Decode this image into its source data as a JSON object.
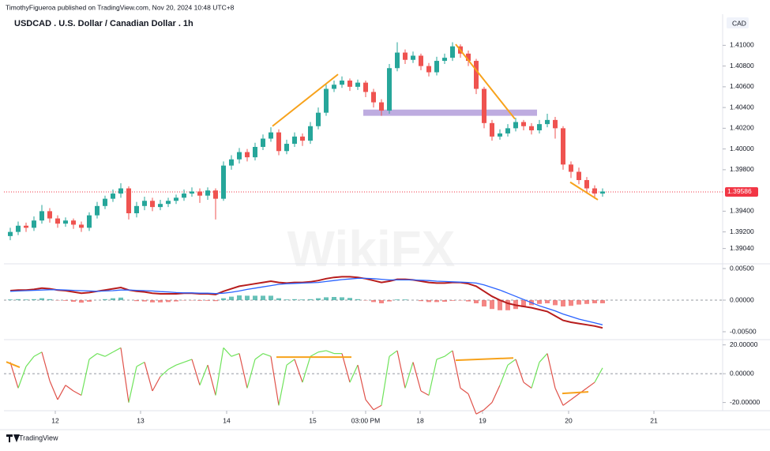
{
  "header": {
    "publisher": "TimothyFigueroa published on TradingView.com, Nov 20, 2024 10:48 UTC+8",
    "title": "USDCAD . U.S. Dollar / Canadian Dollar . 1h"
  },
  "watermark": "WikiFX",
  "brand": "TradingView",
  "chart_data": [
    {
      "type": "candlestick",
      "currency": "CAD",
      "up_color": "#26a69a",
      "down_color": "#ef5350",
      "xlim": [
        -0.8,
        90.2
      ],
      "xticks": [
        {
          "value": 5.7,
          "label": "12"
        },
        {
          "value": 16.5,
          "label": "13"
        },
        {
          "value": 27.4,
          "label": "14"
        },
        {
          "value": 38.3,
          "label": "15"
        },
        {
          "value": 45,
          "label": "03:00 PM"
        },
        {
          "value": 51.9,
          "label": "18"
        },
        {
          "value": 59.8,
          "label": "19"
        },
        {
          "value": 70.7,
          "label": "20"
        },
        {
          "value": 81.5,
          "label": "21"
        }
      ],
      "ylim": [
        1.389,
        1.413
      ],
      "yticks": [
        {
          "value": 1.41,
          "label": "1.41000"
        },
        {
          "value": 1.408,
          "label": "1.40800"
        },
        {
          "value": 1.406,
          "label": "1.40600"
        },
        {
          "value": 1.404,
          "label": "1.40400"
        },
        {
          "value": 1.402,
          "label": "1.40200"
        },
        {
          "value": 1.4,
          "label": "1.40000"
        },
        {
          "value": 1.398,
          "label": "1.39800"
        },
        {
          "value": 1.394,
          "label": "1.39400"
        },
        {
          "value": 1.392,
          "label": "1.39200"
        },
        {
          "value": 1.3904,
          "label": "1.39040"
        }
      ],
      "last_price": 1.39586,
      "last_price_color": "#f23645",
      "trendline_color": "#f7a21b",
      "trendlines": [
        {
          "from": [
            33.2,
            1.4022
          ],
          "to": [
            41.5,
            1.4072
          ]
        },
        {
          "from": [
            56.4,
            1.4101
          ],
          "to": [
            63.9,
            1.4029
          ]
        },
        {
          "from": [
            70.9,
            1.3968
          ],
          "to": [
            74.4,
            1.3951
          ]
        }
      ],
      "zone": {
        "x": [
          44.7,
          66.7
        ],
        "y": [
          1.4032,
          1.4038
        ],
        "color": "#b39ddb"
      },
      "candles": [
        [
          1.3916,
          1.3924,
          1.3912,
          1.392
        ],
        [
          1.392,
          1.393,
          1.3917,
          1.3926
        ],
        [
          1.3926,
          1.3929,
          1.392,
          1.3924
        ],
        [
          1.3924,
          1.3935,
          1.3921,
          1.3931
        ],
        [
          1.3931,
          1.3946,
          1.3928,
          1.394
        ],
        [
          1.394,
          1.3943,
          1.3929,
          1.3933
        ],
        [
          1.3933,
          1.3936,
          1.3924,
          1.3928
        ],
        [
          1.3928,
          1.3934,
          1.3925,
          1.3931
        ],
        [
          1.3931,
          1.3933,
          1.3923,
          1.3927
        ],
        [
          1.3927,
          1.393,
          1.392,
          1.3924
        ],
        [
          1.3924,
          1.3939,
          1.3921,
          1.3936
        ],
        [
          1.3936,
          1.3949,
          1.3933,
          1.3945
        ],
        [
          1.3945,
          1.3955,
          1.3942,
          1.3952
        ],
        [
          1.3952,
          1.3961,
          1.3949,
          1.3957
        ],
        [
          1.3957,
          1.3967,
          1.3953,
          1.3962
        ],
        [
          1.3962,
          1.3964,
          1.3932,
          1.3938
        ],
        [
          1.3938,
          1.3949,
          1.3934,
          1.3945
        ],
        [
          1.3945,
          1.3954,
          1.3941,
          1.395
        ],
        [
          1.395,
          1.3953,
          1.394,
          1.3944
        ],
        [
          1.3944,
          1.3951,
          1.3941,
          1.3947
        ],
        [
          1.3947,
          1.3953,
          1.3944,
          1.395
        ],
        [
          1.395,
          1.3956,
          1.3947,
          1.3953
        ],
        [
          1.3953,
          1.3961,
          1.395,
          1.3957
        ],
        [
          1.3957,
          1.3963,
          1.3954,
          1.3959
        ],
        [
          1.3959,
          1.3962,
          1.3948,
          1.3955
        ],
        [
          1.3955,
          1.3963,
          1.3951,
          1.396
        ],
        [
          1.396,
          1.3962,
          1.3932,
          1.3952
        ],
        [
          1.3952,
          1.3988,
          1.395,
          1.3984
        ],
        [
          1.3984,
          1.3994,
          1.398,
          1.399
        ],
        [
          1.399,
          1.4001,
          1.3986,
          1.3997
        ],
        [
          1.3997,
          1.4,
          1.3988,
          1.3992
        ],
        [
          1.3992,
          1.4006,
          1.3989,
          1.4002
        ],
        [
          1.4002,
          1.4014,
          1.3999,
          1.401
        ],
        [
          1.401,
          1.4021,
          1.4007,
          1.4016
        ],
        [
          1.4016,
          1.4019,
          1.3994,
          1.3998
        ],
        [
          1.3998,
          1.4009,
          1.3995,
          1.4005
        ],
        [
          1.4005,
          1.4016,
          1.4002,
          1.4012
        ],
        [
          1.4012,
          1.4015,
          1.4003,
          1.4008
        ],
        [
          1.4008,
          1.4026,
          1.4005,
          1.4022
        ],
        [
          1.4022,
          1.404,
          1.4019,
          1.4035
        ],
        [
          1.4035,
          1.4062,
          1.4032,
          1.4058
        ],
        [
          1.4058,
          1.4066,
          1.4055,
          1.4062
        ],
        [
          1.4062,
          1.407,
          1.4059,
          1.4066
        ],
        [
          1.4066,
          1.4068,
          1.4056,
          1.406
        ],
        [
          1.406,
          1.4067,
          1.4057,
          1.4064
        ],
        [
          1.4064,
          1.4066,
          1.405,
          1.4055
        ],
        [
          1.4055,
          1.4058,
          1.404,
          1.4045
        ],
        [
          1.4045,
          1.4048,
          1.4032,
          1.4037
        ],
        [
          1.4037,
          1.4082,
          1.4034,
          1.4078
        ],
        [
          1.4078,
          1.4103,
          1.4075,
          1.4093
        ],
        [
          1.4093,
          1.4096,
          1.4082,
          1.4086
        ],
        [
          1.4086,
          1.4094,
          1.4083,
          1.409
        ],
        [
          1.409,
          1.4092,
          1.4076,
          1.408
        ],
        [
          1.408,
          1.4083,
          1.407,
          1.4074
        ],
        [
          1.4074,
          1.4089,
          1.4071,
          1.4085
        ],
        [
          1.4085,
          1.4092,
          1.4082,
          1.4088
        ],
        [
          1.4088,
          1.4103,
          1.4085,
          1.4099
        ],
        [
          1.4099,
          1.4101,
          1.4088,
          1.4092
        ],
        [
          1.4092,
          1.4095,
          1.408,
          1.4085
        ],
        [
          1.4085,
          1.4087,
          1.4053,
          1.4058
        ],
        [
          1.4058,
          1.406,
          1.402,
          1.4025
        ],
        [
          1.4025,
          1.4028,
          1.4008,
          1.4012
        ],
        [
          1.4012,
          1.4019,
          1.4009,
          1.4015
        ],
        [
          1.4015,
          1.4024,
          1.4012,
          1.402
        ],
        [
          1.402,
          1.403,
          1.4017,
          1.4026
        ],
        [
          1.4026,
          1.4028,
          1.4018,
          1.4022
        ],
        [
          1.4022,
          1.4025,
          1.4014,
          1.4018
        ],
        [
          1.4018,
          1.4028,
          1.4015,
          1.4024
        ],
        [
          1.4024,
          1.4034,
          1.4021,
          1.4028
        ],
        [
          1.4028,
          1.4031,
          1.401,
          1.402
        ],
        [
          1.402,
          1.4022,
          1.398,
          1.3985
        ],
        [
          1.3985,
          1.3988,
          1.3972,
          1.3978
        ],
        [
          1.3978,
          1.3982,
          1.3966,
          1.397
        ],
        [
          1.397,
          1.3973,
          1.3958,
          1.3962
        ],
        [
          1.3962,
          1.3965,
          1.3952,
          1.3957
        ],
        [
          1.3957,
          1.3962,
          1.3954,
          1.3959
        ]
      ]
    },
    {
      "type": "macd",
      "ylim": [
        -0.006,
        0.005625
      ],
      "yticks": [
        {
          "value": 0.005,
          "label": "0.00500"
        },
        {
          "value": 0,
          "label": "0.00000"
        },
        {
          "value": -0.005,
          "label": "-0.00500"
        }
      ],
      "hist_colors": {
        "positive": "#26a69a",
        "negative": "#ef5350"
      },
      "series": [
        {
          "color": "#b71c1c",
          "values": [
            0.0015,
            0.0016,
            0.0016,
            0.0017,
            0.0019,
            0.0018,
            0.0016,
            0.0015,
            0.0013,
            0.0011,
            0.0012,
            0.0014,
            0.0016,
            0.0018,
            0.002,
            0.0016,
            0.0014,
            0.0013,
            0.0011,
            0.001,
            0.001,
            0.001,
            0.0011,
            0.0011,
            0.001,
            0.001,
            0.0009,
            0.0014,
            0.0018,
            0.0022,
            0.0024,
            0.0026,
            0.0028,
            0.003,
            0.0028,
            0.0027,
            0.0028,
            0.0028,
            0.0029,
            0.0031,
            0.0034,
            0.0036,
            0.0037,
            0.0037,
            0.0036,
            0.0034,
            0.0031,
            0.0028,
            0.003,
            0.0033,
            0.0033,
            0.0032,
            0.003,
            0.0028,
            0.0027,
            0.0027,
            0.0028,
            0.0028,
            0.0026,
            0.0022,
            0.0014,
            0.0006,
            0,
            -0.0005,
            -0.0008,
            -0.001,
            -0.0012,
            -0.0015,
            -0.0018,
            -0.0025,
            -0.0032,
            -0.0035,
            -0.0037,
            -0.0039,
            -0.0041,
            -0.0044
          ]
        },
        {
          "color": "#2962ff",
          "values": [
            0.0014,
            0.00145,
            0.0015,
            0.00155,
            0.0016,
            0.00165,
            0.00165,
            0.0016,
            0.00155,
            0.0015,
            0.00145,
            0.0014,
            0.00145,
            0.0015,
            0.0016,
            0.0016,
            0.00155,
            0.0015,
            0.00145,
            0.00135,
            0.0013,
            0.0012,
            0.00115,
            0.00115,
            0.0011,
            0.0011,
            0.00105,
            0.0011,
            0.00125,
            0.00145,
            0.0017,
            0.0019,
            0.0021,
            0.0023,
            0.0025,
            0.0026,
            0.00265,
            0.0027,
            0.00275,
            0.0028,
            0.00295,
            0.0031,
            0.00325,
            0.00335,
            0.00345,
            0.00345,
            0.0034,
            0.0033,
            0.0032,
            0.0032,
            0.0032,
            0.0032,
            0.00315,
            0.0031,
            0.003,
            0.00295,
            0.0029,
            0.00285,
            0.0028,
            0.0027,
            0.0024,
            0.002,
            0.0016,
            0.0011,
            0.0006,
            0.0001,
            -0.0004,
            -0.0009,
            -0.0013,
            -0.0017,
            -0.0022,
            -0.0026,
            -0.003,
            -0.0033,
            -0.0036,
            -0.0039
          ]
        }
      ],
      "histogram": [
        0.0001,
        0.00015,
        0.0001,
        0.00015,
        0.0003,
        0.00015,
        -5e-05,
        -0.0001,
        -0.00025,
        -0.0004,
        -0.00025,
        0,
        0.00015,
        0.0003,
        0.0004,
        0,
        -0.00015,
        -0.0002,
        -0.00035,
        -0.00035,
        -0.0003,
        -0.0002,
        -5e-05,
        -5e-05,
        -0.0001,
        -0.0001,
        -0.00015,
        0.0003,
        0.00055,
        0.00075,
        0.0007,
        0.0007,
        0.0007,
        0.0007,
        0.0003,
        0.0001,
        0.00015,
        0.0001,
        0.00015,
        0.0003,
        0.00045,
        0.0005,
        0.00045,
        0.00035,
        0.00015,
        -5e-05,
        -0.0003,
        -0.0005,
        -0.0002,
        0.0001,
        0.0001,
        0,
        -0.00015,
        -0.0003,
        -0.0003,
        -0.00025,
        -0.0001,
        -5e-05,
        -0.0002,
        -0.0005,
        -0.001,
        -0.0014,
        -0.0016,
        -0.0016,
        -0.0014,
        -0.0011,
        -0.0008,
        -0.0006,
        -0.0005,
        -0.0008,
        -0.001,
        -0.0009,
        -0.0007,
        -0.0006,
        -0.0005,
        -0.0005
      ]
    },
    {
      "type": "oscillator",
      "ylim": [
        -25.7,
        22
      ],
      "yticks": [
        {
          "value": 20,
          "label": "20.00000"
        },
        {
          "value": 0,
          "label": "0.00000"
        },
        {
          "value": -20,
          "label": "-20.00000"
        }
      ],
      "colors": {
        "positive": "#6fe35b",
        "negative": "#e0524a"
      },
      "trendline_color": "#f7a21b",
      "trendlines": [
        {
          "from": [
            -0.5,
            8.2
          ],
          "to": [
            1.2,
            4.4
          ]
        },
        {
          "from": [
            33.7,
            11.5
          ],
          "to": [
            43.2,
            11.5
          ]
        },
        {
          "from": [
            56.4,
            9.3
          ],
          "to": [
            63.7,
            10.9
          ]
        },
        {
          "from": [
            69.9,
            -13.7
          ],
          "to": [
            73.2,
            -12.6
          ]
        }
      ],
      "values": [
        8,
        -10,
        5,
        12,
        15,
        -5,
        -18,
        -8,
        -12,
        -15,
        10,
        14,
        12,
        15,
        18,
        -20,
        5,
        8,
        -12,
        -2,
        3,
        6,
        8,
        10,
        -8,
        6,
        -15,
        18,
        12,
        14,
        -10,
        10,
        14,
        12,
        -22,
        6,
        10,
        -6,
        12,
        15,
        16,
        14,
        14,
        -6,
        6,
        -18,
        -25,
        -22,
        12,
        16,
        -10,
        8,
        -12,
        -15,
        10,
        12,
        16,
        -10,
        -14,
        -28,
        -25,
        -20,
        -8,
        6,
        10,
        -6,
        -10,
        8,
        14,
        -10,
        -22,
        -18,
        -14,
        -10,
        -6,
        4
      ]
    }
  ]
}
